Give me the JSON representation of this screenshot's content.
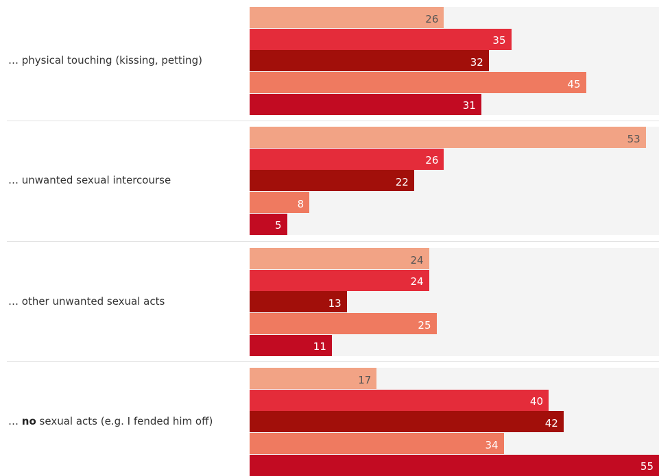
{
  "chart_data": {
    "type": "bar",
    "orientation": "horizontal",
    "categories": [
      "… physical touching (kissing, petting)",
      "… unwanted sexual intercourse",
      "… other unwanted sexual acts",
      "… no sexual acts (e.g. I fended him off)"
    ],
    "category_parts": [
      {
        "prefix": "… physical touching (kissing, petting)",
        "bold": "",
        "suffix": ""
      },
      {
        "prefix": "… unwanted sexual intercourse",
        "bold": "",
        "suffix": ""
      },
      {
        "prefix": "… other unwanted sexual acts",
        "bold": "",
        "suffix": ""
      },
      {
        "prefix": "… ",
        "bold": "no",
        "suffix": " sexual acts (e.g. I fended him off)"
      }
    ],
    "series": [
      {
        "values": [
          26,
          53,
          24,
          17
        ],
        "color": "#f2a385",
        "label_color": "#555555"
      },
      {
        "values": [
          35,
          26,
          24,
          40
        ],
        "color": "#e42c3a",
        "label_color": "#ffffff"
      },
      {
        "values": [
          32,
          22,
          13,
          42
        ],
        "color": "#a20f0a",
        "label_color": "#ffffff"
      },
      {
        "values": [
          45,
          8,
          25,
          34
        ],
        "color": "#ef7a60",
        "label_color": "#ffffff"
      },
      {
        "values": [
          31,
          5,
          11,
          55
        ],
        "color": "#c20b22",
        "label_color": "#ffffff"
      }
    ],
    "xlim": [
      0,
      55
    ],
    "grid": false,
    "legend": "none",
    "title": "",
    "xlabel": "",
    "ylabel": ""
  }
}
